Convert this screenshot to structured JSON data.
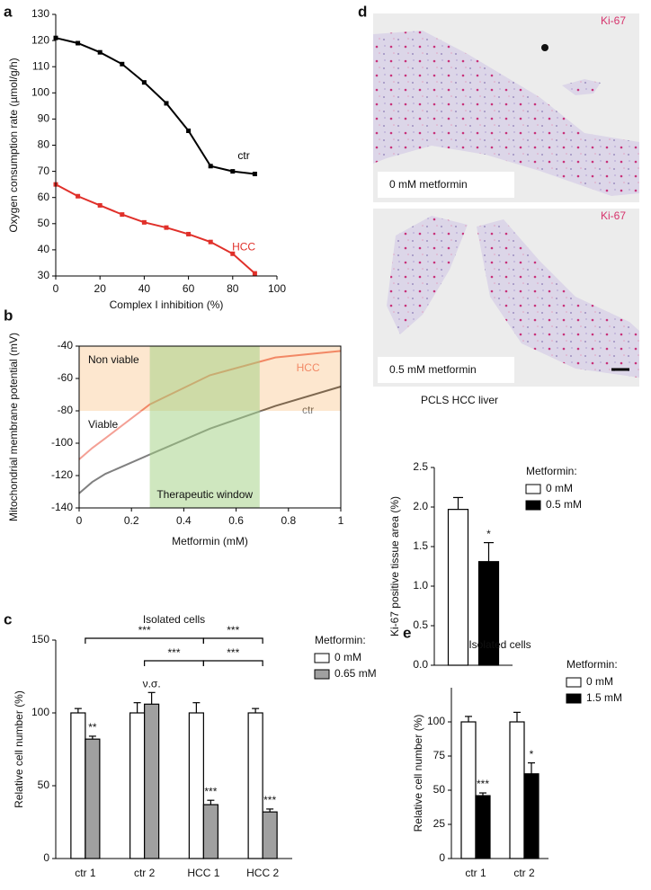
{
  "chart_data": [
    {
      "panel": "a",
      "type": "line",
      "x": [
        0,
        10,
        20,
        30,
        40,
        50,
        60,
        70,
        80,
        90
      ],
      "series": [
        {
          "name": "ctr",
          "color": "#000000",
          "values": [
            121,
            119,
            115.5,
            111,
            104,
            96,
            85.5,
            72,
            70,
            69
          ]
        },
        {
          "name": "HCC",
          "color": "#e0302a",
          "values": [
            65,
            60.5,
            57,
            53.5,
            50.5,
            48.5,
            46,
            43,
            38.5,
            31
          ]
        }
      ],
      "x_label": "Complex I inhibition (%)",
      "y_label": "Oxygen consumption rate (µmol/g/h)",
      "xlim": [
        0,
        100
      ],
      "xticks": [
        0,
        20,
        40,
        60,
        80,
        100
      ],
      "ylim": [
        30,
        130
      ],
      "yticks": [
        30,
        40,
        50,
        60,
        70,
        80,
        90,
        100,
        110,
        120,
        130
      ],
      "markers": true
    },
    {
      "panel": "b",
      "type": "line",
      "x": [
        0,
        0.05,
        0.1,
        0.27,
        0.5,
        0.75,
        1
      ],
      "series": [
        {
          "name": "HCC",
          "color": "#e8402a",
          "values": [
            -110,
            -103,
            -97,
            -76,
            -58,
            -47,
            -43
          ]
        },
        {
          "name": "ctr",
          "color": "#000000",
          "values": [
            -131,
            -124,
            -119,
            -107,
            -91,
            -77,
            -65
          ]
        }
      ],
      "x_label": "Metformin (mM)",
      "y_label": "Mitochondrial membrane potential (mV)",
      "xlim": [
        0,
        1
      ],
      "xticks": [
        0,
        0.2,
        0.4,
        0.6,
        0.8,
        1
      ],
      "ylim": [
        -140,
        -40
      ],
      "yticks": [
        -140,
        -120,
        -100,
        -80,
        -60,
        -40
      ],
      "markers": false,
      "frame": true,
      "bands": [
        {
          "label": "Non viable",
          "y": [
            -80,
            -40
          ],
          "color": "#fbcf9f"
        },
        {
          "label": "Viable",
          "y": [
            -140,
            -80
          ],
          "color": "#ffffff"
        },
        {
          "label": "Therapeutic window",
          "x": [
            0.27,
            0.69
          ],
          "color": "#9fd07f"
        }
      ]
    },
    {
      "panel": "c",
      "type": "bar",
      "title": "Isolated cells",
      "categories": [
        "ctr 1",
        "ctr 2",
        "HCC 1",
        "HCC 2"
      ],
      "series": [
        {
          "name": "0 mM",
          "color": "#ffffff",
          "values": [
            100,
            100,
            100,
            100
          ],
          "errors": [
            3,
            7,
            7,
            3
          ],
          "significance": [
            null,
            null,
            null,
            null
          ]
        },
        {
          "name": "0.65 mM",
          "color": "#a0a0a0",
          "values": [
            82,
            106,
            37,
            32
          ],
          "errors": [
            2,
            8,
            3,
            2
          ],
          "significance": [
            "**",
            "ν.σ.",
            "***",
            "***"
          ]
        }
      ],
      "legend_title": "Metformin:",
      "y_label": "Relative cell number (%)",
      "ylim": [
        0,
        150
      ],
      "yticks": [
        0,
        50,
        100,
        150
      ],
      "comparisons": [
        [
          {
            "from": "ctr 1",
            "to": "HCC 1",
            "label": "***"
          },
          {
            "from": "HCC 1",
            "to": "HCC 2",
            "label": "***"
          }
        ],
        [
          {
            "from": "ctr 2",
            "to": "HCC 1",
            "label": "***"
          },
          {
            "from": "HCC 1",
            "to": "HCC 2",
            "label": "***"
          }
        ]
      ]
    },
    {
      "type": "bar",
      "categories": [
        null
      ],
      "series": [
        {
          "name": "0 mM",
          "color": "#ffffff",
          "values": [
            1.97
          ],
          "errors": [
            0.15
          ],
          "significance": [
            null
          ]
        },
        {
          "name": "0.5 mM",
          "color": "#000000",
          "values": [
            1.31
          ],
          "errors": [
            0.24
          ],
          "significance": [
            "*"
          ]
        }
      ],
      "legend_title": "Metformin:",
      "y_label": "Ki-67 positive tissue area (%)",
      "ylim": [
        0,
        2.5
      ],
      "yticks": [
        {
          "value": 0,
          "label": "0.0"
        },
        0.5,
        {
          "value": 1,
          "label": "1.0"
        },
        1.5,
        {
          "value": 2,
          "label": "2.0"
        },
        2.5
      ]
    },
    {
      "panel": "e",
      "type": "bar",
      "title": "Isolated cells",
      "categories": [
        "ctr 1",
        "ctr 2"
      ],
      "series": [
        {
          "name": "0 mM",
          "color": "#ffffff",
          "values": [
            100,
            100
          ],
          "errors": [
            4,
            7
          ],
          "significance": [
            null,
            null
          ]
        },
        {
          "name": "1.5 mM",
          "color": "#000000",
          "values": [
            46,
            62
          ],
          "errors": [
            2,
            8
          ],
          "significance": [
            "***",
            "*"
          ]
        }
      ],
      "legend_title": "Metformin:",
      "y_label": "Relative cell number (%)",
      "ylim": [
        0,
        125
      ],
      "yticks": [
        0,
        25,
        50,
        75,
        100
      ]
    }
  ],
  "micrographs": {
    "panel": "d",
    "stain": "Ki-67",
    "top_label": "0 mM metformin",
    "bottom_label": "0.5 mM metformin",
    "caption": "PCLS HCC liver"
  }
}
